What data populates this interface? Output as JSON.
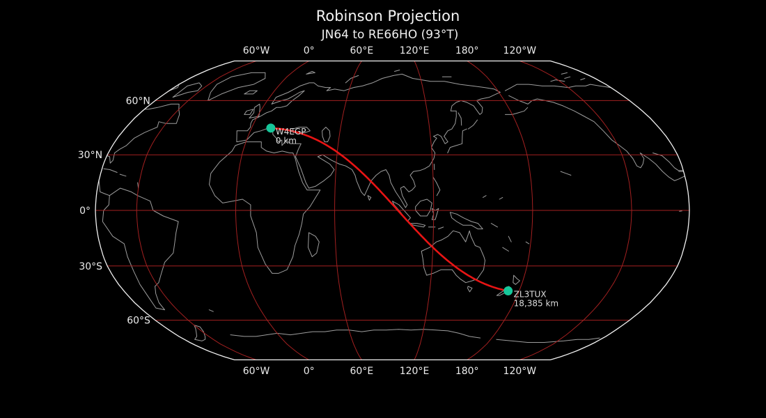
{
  "title": "Robinson Projection",
  "subtitle": "JN64 to RE66HO (93°T)",
  "colors": {
    "background": "#000000",
    "map_border": "#f2f2f2",
    "graticule": "#a32020",
    "coastline": "#9e9e9e",
    "great_circle": "#e81414",
    "endpoint_marker": "#16c79a",
    "tick_label": "#ececec",
    "marker_label": "#dcdcdc"
  },
  "axes": {
    "lon_ticks": [
      {
        "label": "60°W",
        "lon": -60
      },
      {
        "label": "0°",
        "lon": 0
      },
      {
        "label": "60°E",
        "lon": 60
      },
      {
        "label": "120°E",
        "lon": 120
      },
      {
        "label": "180°",
        "lon": 180
      },
      {
        "label": "120°W",
        "lon": 240
      }
    ],
    "lat_ticks": [
      {
        "label": "60°N",
        "lat": 60
      },
      {
        "label": "30°N",
        "lat": 30
      },
      {
        "label": "0°",
        "lat": 0
      },
      {
        "label": "30°S",
        "lat": -30
      },
      {
        "label": "60°S",
        "lat": -60
      }
    ]
  },
  "chart_data": {
    "type": "map",
    "projection": "Robinson",
    "central_longitude": 95,
    "path": {
      "from_grid": "JN64",
      "to_grid": "RE66HO",
      "bearing_label": "93°T",
      "distance_km": 18385
    },
    "endpoints": [
      {
        "callsign": "W4EGP",
        "distance_label": "0 km",
        "lat": 44.5,
        "lon": 13.0
      },
      {
        "callsign": "ZL3TUX",
        "distance_label": "18,385 km",
        "lat": -43.5,
        "lon": 172.6
      }
    ]
  }
}
